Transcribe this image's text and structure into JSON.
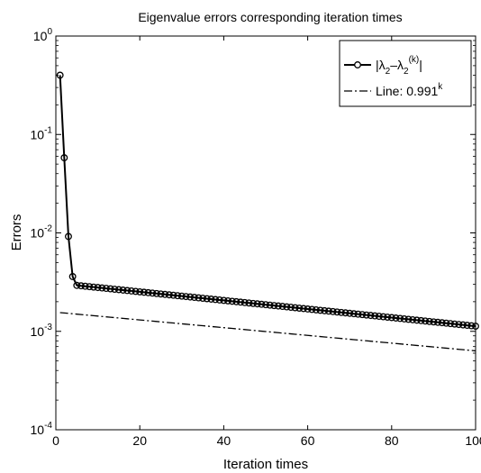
{
  "chart_data": {
    "type": "line",
    "title": "Eigenvalue errors corresponding iteration times",
    "xlabel": "Iteration times",
    "ylabel": "Errors",
    "xlim": [
      0,
      100
    ],
    "ylim": [
      0.0001,
      1
    ],
    "y_scale": "log",
    "grid": false,
    "legend_position": "top-right",
    "x_ticks": [
      {
        "value": 0,
        "label": "0"
      },
      {
        "value": 20,
        "label": "20"
      },
      {
        "value": 40,
        "label": "40"
      },
      {
        "value": 60,
        "label": "60"
      },
      {
        "value": 80,
        "label": "80"
      },
      {
        "value": 100,
        "label": "100"
      }
    ],
    "y_ticks": [
      {
        "value": 1,
        "base": "10",
        "exp": "0"
      },
      {
        "value": 0.1,
        "base": "10",
        "exp": "-1"
      },
      {
        "value": 0.01,
        "base": "10",
        "exp": "-2"
      },
      {
        "value": 0.001,
        "base": "10",
        "exp": "-3"
      },
      {
        "value": 0.0001,
        "base": "10",
        "exp": "-4"
      }
    ],
    "series": [
      {
        "legend_parts": [
          "|λ",
          "2",
          "–λ",
          "2",
          "(k)",
          "|"
        ],
        "style": "solid-circle-markers",
        "color": "#000000",
        "x_start": 1,
        "x_end": 100,
        "head_values": [
          0.4,
          0.058,
          0.0092,
          0.0036
        ],
        "tail_start": 0.00293,
        "tail_ratio": 0.99
      },
      {
        "legend_parts": [
          "Line: 0.991",
          "k"
        ],
        "style": "dash-dot",
        "color": "#000000",
        "x_start": 1,
        "x_end": 100,
        "start_value": 0.00155,
        "ratio": 0.991
      }
    ]
  }
}
